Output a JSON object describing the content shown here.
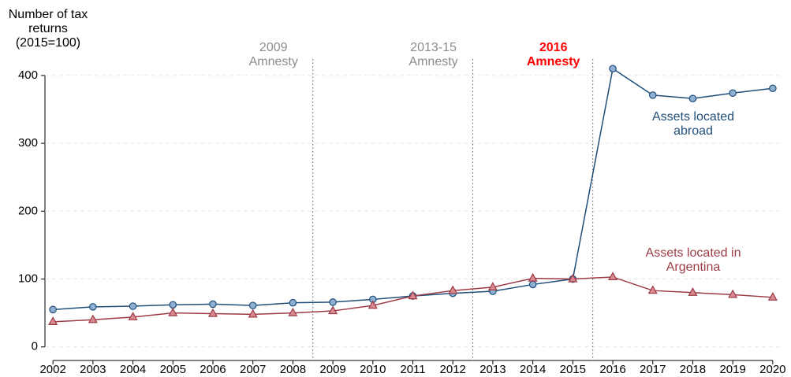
{
  "chart_data": {
    "type": "line",
    "y_label": "Number of tax returns (2015=100)",
    "x": [
      2002,
      2003,
      2004,
      2005,
      2006,
      2007,
      2008,
      2009,
      2010,
      2011,
      2012,
      2013,
      2014,
      2015,
      2016,
      2017,
      2018,
      2019,
      2020
    ],
    "series": [
      {
        "name": "Assets located abroad",
        "color": "#1f4e79",
        "marker_color": "#8fb0d2",
        "marker": "circle",
        "values": [
          55,
          59,
          60,
          62,
          63,
          61,
          65,
          66,
          70,
          75,
          79,
          82,
          92,
          100,
          410,
          371,
          366,
          374,
          381
        ]
      },
      {
        "name": "Assets located in Argentina",
        "color": "#9c3b45",
        "marker_color": "#d98a91",
        "marker": "triangle",
        "values": [
          37,
          40,
          44,
          50,
          49,
          48,
          50,
          53,
          61,
          75,
          83,
          88,
          101,
          100,
          103,
          83,
          80,
          77,
          73
        ]
      }
    ],
    "events": [
      {
        "x": 2008.5,
        "label": "2009 Amnesty",
        "color": "#8c8c8c",
        "bold": false
      },
      {
        "x": 2012.5,
        "label": "2013-15 Amnesty",
        "color": "#8c8c8c",
        "bold": false
      },
      {
        "x": 2015.5,
        "label": "2016 Amnesty",
        "color": "#ff0000",
        "bold": true
      }
    ],
    "xlim": [
      2001.8,
      2020.2
    ],
    "ylim": [
      -20,
      430
    ],
    "xticks": [
      2002,
      2003,
      2004,
      2005,
      2006,
      2007,
      2008,
      2009,
      2010,
      2011,
      2012,
      2013,
      2014,
      2015,
      2016,
      2017,
      2018,
      2019,
      2020
    ],
    "yticks": [
      0,
      100,
      200,
      300,
      400
    ],
    "grid": true
  }
}
